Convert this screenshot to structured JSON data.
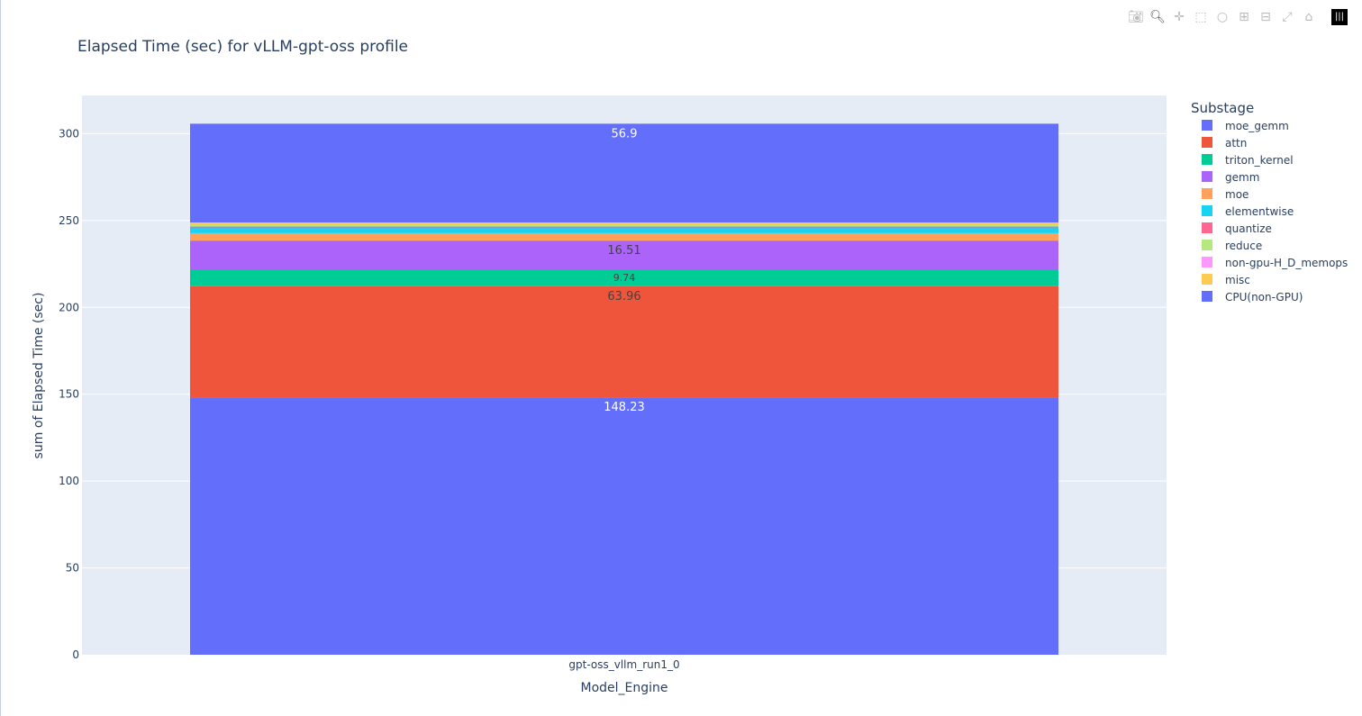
{
  "chart_data": {
    "type": "bar",
    "barmode": "stack",
    "title": "Elapsed Time (sec) for vLLM-gpt-oss profile",
    "xlabel": "Model_Engine",
    "ylabel": "sum of Elapsed Time (sec)",
    "categories": [
      "gpt-oss_vllm_run1_0"
    ],
    "ylim": [
      0,
      322
    ],
    "yticks": [
      0,
      50,
      100,
      150,
      200,
      250,
      300
    ],
    "grid": true,
    "legend_title": "Substage",
    "legend_position": "right",
    "legend_order": [
      "moe_gemm",
      "attn",
      "triton_kernel",
      "gemm",
      "moe",
      "elementwise",
      "quantize",
      "reduce",
      "non-gpu-H_D_memops",
      "misc",
      "CPU(non-GPU)"
    ],
    "stack_bottom_to_top": [
      {
        "name": "CPU(non-GPU)",
        "values": [
          148.23
        ],
        "color": "#636efa",
        "label": "148.23"
      },
      {
        "name": "attn",
        "values": [
          63.96
        ],
        "color": "#EF553B",
        "label": "63.96"
      },
      {
        "name": "triton_kernel",
        "values": [
          9.74
        ],
        "color": "#00cc96",
        "label": "9.74"
      },
      {
        "name": "gemm",
        "values": [
          16.51
        ],
        "color": "#ab63fa",
        "label": "16.51"
      },
      {
        "name": "moe",
        "values": [
          4.3
        ],
        "color": "#FFA15A",
        "label": ""
      },
      {
        "name": "elementwise",
        "values": [
          3.3
        ],
        "color": "#19d3f3",
        "label": ""
      },
      {
        "name": "quantize",
        "values": [
          0.5
        ],
        "color": "#FF6692",
        "label": ""
      },
      {
        "name": "reduce",
        "values": [
          0.8
        ],
        "color": "#B6E880",
        "label": ""
      },
      {
        "name": "non-gpu-H_D_memops",
        "values": [
          0.3
        ],
        "color": "#FF97FF",
        "label": ""
      },
      {
        "name": "misc",
        "values": [
          1.2
        ],
        "color": "#FECB52",
        "label": ""
      },
      {
        "name": "moe_gemm",
        "values": [
          56.9
        ],
        "color": "#636efa",
        "label": "56.9"
      }
    ]
  },
  "modebar": [
    "camera-icon",
    "zoom-icon",
    "pan-icon",
    "box-select-icon",
    "lasso-icon",
    "zoom-in-icon",
    "zoom-out-icon",
    "autoscale-icon",
    "home-icon",
    "plotly-logo-icon"
  ]
}
